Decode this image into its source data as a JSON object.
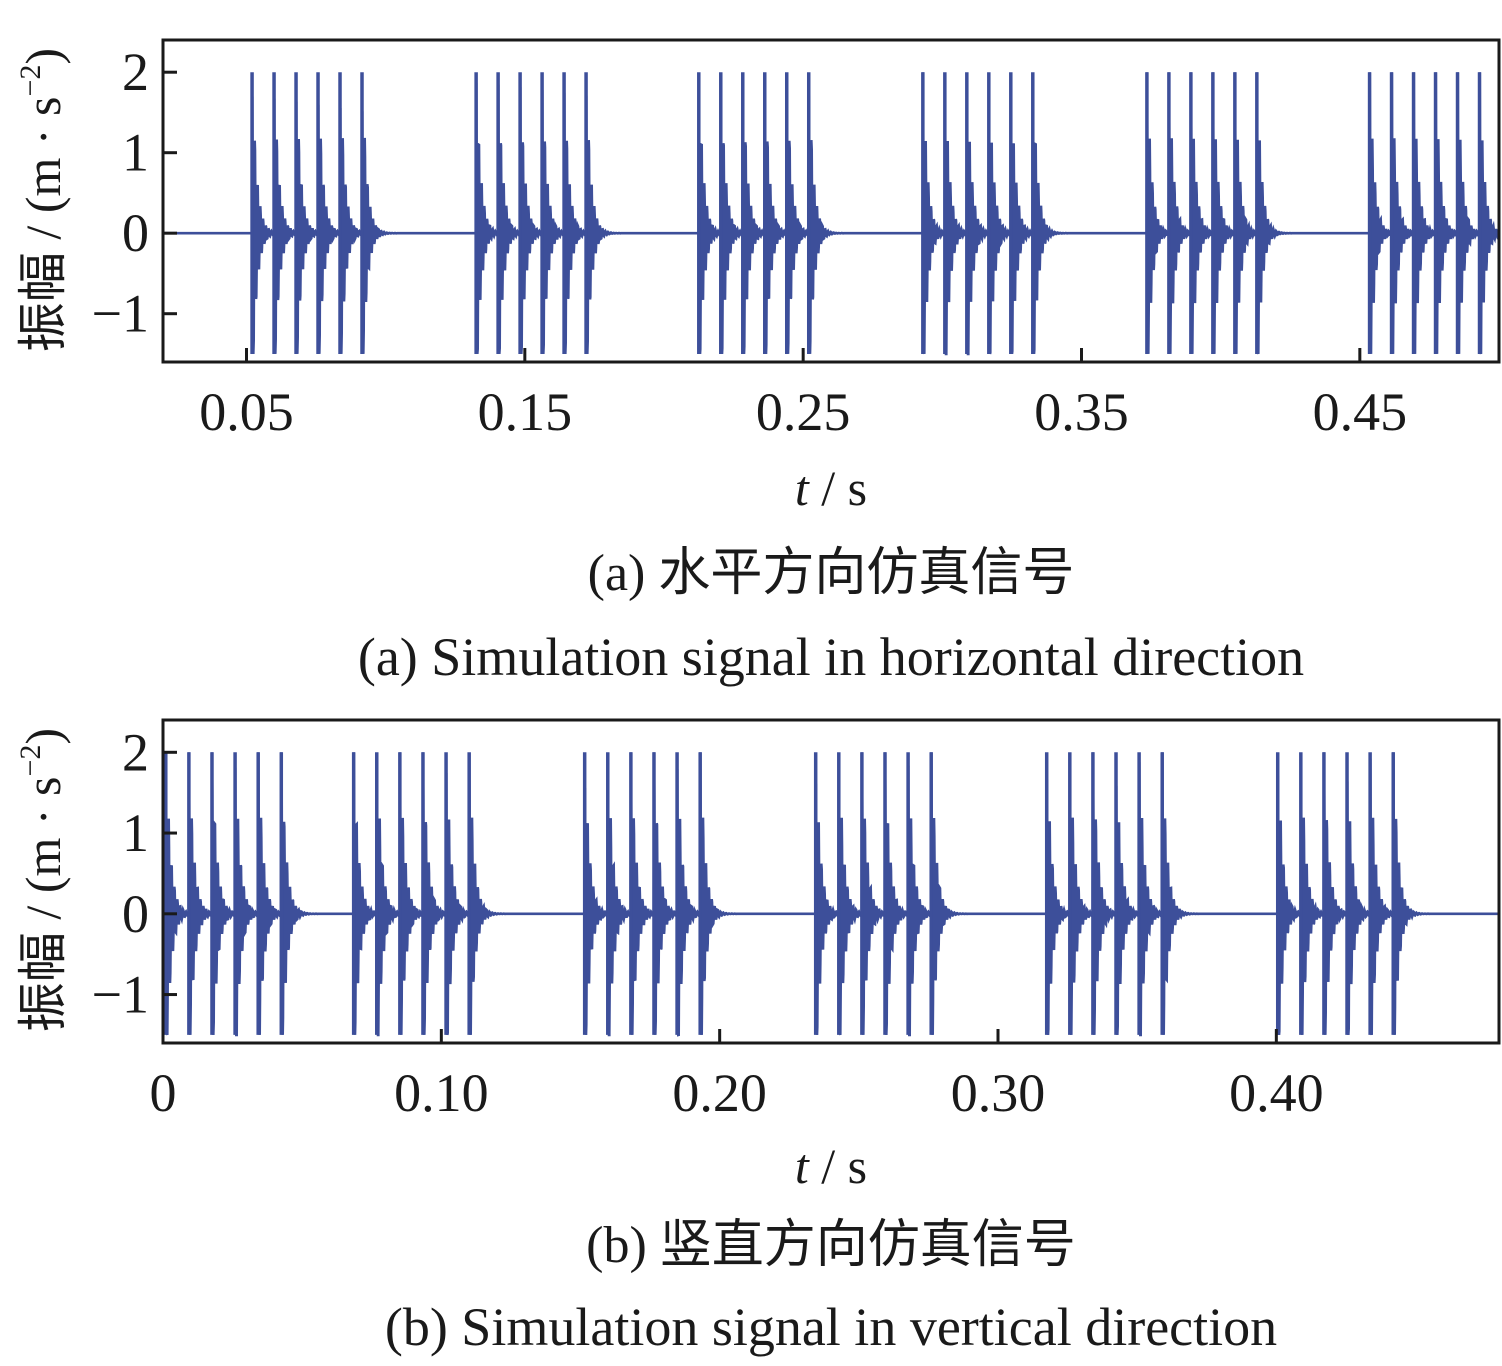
{
  "chart_data": [
    {
      "type": "line",
      "caption_cn": "(a)  水平方向仿真信号",
      "caption_en": "(a)  Simulation signal in horizontal direction",
      "xlabel_var": "t",
      "xlabel_unit": " / s",
      "ylabel_prefix": "振幅 / (m · s",
      "ylabel_exp": "−2",
      "ylabel_suffix": ")",
      "xlim": [
        0.02,
        0.5
      ],
      "ylim": [
        -1.6,
        2.4
      ],
      "x_ticks": [
        0.05,
        0.15,
        0.25,
        0.35,
        0.45
      ],
      "x_tick_labels": [
        "0.05",
        "0.15",
        "0.25",
        "0.35",
        "0.45"
      ],
      "y_ticks": [
        -1,
        0,
        1,
        2
      ],
      "y_tick_labels": [
        "−1",
        "0",
        "1",
        "2"
      ],
      "series_color": "#3d4f9a",
      "signal": {
        "burst_starts": [
          0.052,
          0.1325,
          0.2125,
          0.293,
          0.3735,
          0.4535
        ],
        "impulses_per_burst": 6,
        "impulse_spacing": 0.0079,
        "peak": 2.0,
        "trough": -1.5
      }
    },
    {
      "type": "line",
      "caption_cn": "(b)  竖直方向仿真信号",
      "caption_en": "(b)  Simulation signal in vertical direction",
      "xlabel_var": "t",
      "xlabel_unit": " / s",
      "ylabel_prefix": "振幅 / (m · s",
      "ylabel_exp": "−2",
      "ylabel_suffix": ")",
      "xlim": [
        0,
        0.48
      ],
      "ylim": [
        -1.6,
        2.4
      ],
      "x_ticks": [
        0,
        0.1,
        0.2,
        0.3,
        0.4
      ],
      "x_tick_labels": [
        "0",
        "0.10",
        "0.20",
        "0.30",
        "0.40"
      ],
      "y_ticks": [
        -1,
        0,
        1,
        2
      ],
      "y_tick_labels": [
        "−1",
        "0",
        "1",
        "2"
      ],
      "series_color": "#3d4f9a",
      "signal": {
        "burst_starts": [
          0.001,
          0.0685,
          0.1515,
          0.2345,
          0.3175,
          0.4005
        ],
        "impulses_per_burst": 6,
        "impulse_spacing": 0.0083,
        "peak": 2.0,
        "trough": -1.5
      }
    }
  ]
}
